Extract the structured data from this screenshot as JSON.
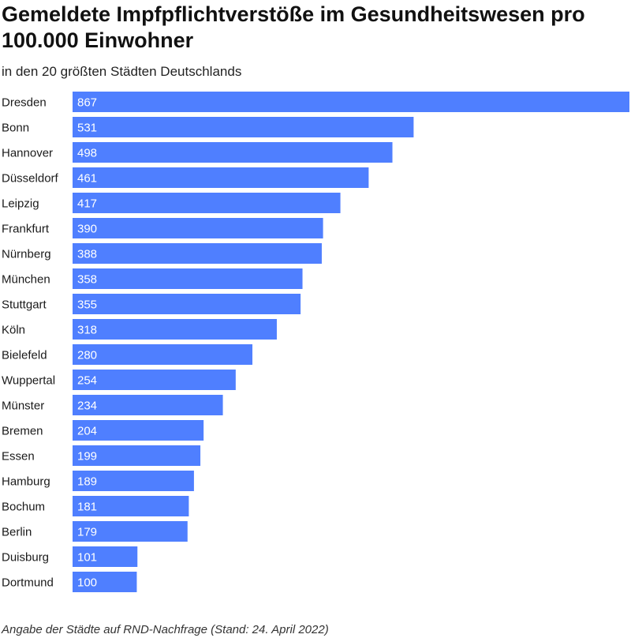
{
  "chart_data": {
    "type": "bar",
    "orientation": "horizontal",
    "title": "Gemeldete Impfpflichtverstöße im Gesundheitswesen pro 100.000 Einwohner",
    "subtitle": "in den 20 größten Städten Deutschlands",
    "categories": [
      "Dresden",
      "Bonn",
      "Hannover",
      "Düsseldorf",
      "Leipzig",
      "Frankfurt",
      "Nürnberg",
      "München",
      "Stuttgart",
      "Köln",
      "Bielefeld",
      "Wuppertal",
      "Münster",
      "Bremen",
      "Essen",
      "Hamburg",
      "Bochum",
      "Berlin",
      "Duisburg",
      "Dortmund"
    ],
    "values": [
      867,
      531,
      498,
      461,
      417,
      390,
      388,
      358,
      355,
      318,
      280,
      254,
      234,
      204,
      199,
      189,
      181,
      179,
      101,
      100
    ],
    "xlim": [
      0,
      867
    ],
    "grid": false,
    "legend": "none",
    "data_labels": "inside-start",
    "bar_color": "#4f7fff",
    "label_color": "#ffffff",
    "footnote": "Angabe der Städte auf RND-Nachfrage (Stand: 24. April 2022)"
  }
}
